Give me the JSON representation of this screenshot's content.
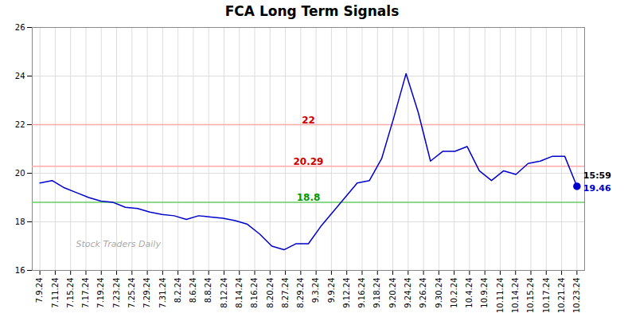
{
  "chart_data": {
    "type": "line",
    "title": "FCA Long Term Signals",
    "x": [
      0,
      0.7955,
      1.5909,
      2.3864,
      3.1818,
      3.9773,
      4.7727,
      5.5682,
      6.3636,
      7.1591,
      7.9545,
      8.75,
      9.5455,
      10.3409,
      11.1364,
      11.9318,
      12.7273,
      13.5227,
      14.3182,
      15.1136,
      15.9091,
      16.7045,
      17.5,
      18.2955,
      19.0909,
      19.8864,
      20.6818,
      21.4773,
      22.2727,
      23.0682,
      23.8636,
      24.6591,
      25.4545,
      26.25,
      27.0455,
      27.8409,
      28.6364,
      29.4318,
      30.2273,
      31.0227,
      31.8182,
      32.6136,
      33.4091,
      34.2045,
      35
    ],
    "values": [
      19.6,
      19.7,
      19.4,
      19.2,
      19.0,
      18.85,
      18.8,
      18.6,
      18.55,
      18.4,
      18.3,
      18.25,
      18.1,
      18.25,
      18.2,
      18.15,
      18.05,
      17.9,
      17.5,
      17.0,
      16.85,
      17.1,
      17.1,
      17.8,
      18.4,
      19.0,
      19.6,
      19.7,
      20.6,
      22.3,
      24.1,
      22.5,
      20.5,
      20.9,
      20.9,
      21.1,
      20.1,
      19.7,
      20.1,
      19.95,
      20.4,
      20.5,
      20.7,
      20.7,
      19.46
    ],
    "color": "#0000cc",
    "xlim": [
      -0.5,
      35.5
    ],
    "xticks": [
      {
        "value": 0,
        "label": "7.9.24"
      },
      {
        "value": 1,
        "label": "7.11.24"
      },
      {
        "value": 2,
        "label": "7.15.24"
      },
      {
        "value": 3,
        "label": "7.17.24"
      },
      {
        "value": 4,
        "label": "7.19.24"
      },
      {
        "value": 5,
        "label": "7.23.24"
      },
      {
        "value": 6,
        "label": "7.25.24"
      },
      {
        "value": 7,
        "label": "7.29.24"
      },
      {
        "value": 8,
        "label": "7.31.24"
      },
      {
        "value": 9,
        "label": "8.2.24"
      },
      {
        "value": 10,
        "label": "8.6.24"
      },
      {
        "value": 11,
        "label": "8.8.24"
      },
      {
        "value": 12,
        "label": "8.12.24"
      },
      {
        "value": 13,
        "label": "8.14.24"
      },
      {
        "value": 14,
        "label": "8.16.24"
      },
      {
        "value": 15,
        "label": "8.20.24"
      },
      {
        "value": 16,
        "label": "8.27.24"
      },
      {
        "value": 17,
        "label": "8.29.24"
      },
      {
        "value": 18,
        "label": "9.3.24"
      },
      {
        "value": 19,
        "label": "9.9.24"
      },
      {
        "value": 20,
        "label": "9.12.24"
      },
      {
        "value": 21,
        "label": "9.16.24"
      },
      {
        "value": 22,
        "label": "9.18.24"
      },
      {
        "value": 23,
        "label": "9.20.24"
      },
      {
        "value": 24,
        "label": "9.24.24"
      },
      {
        "value": 25,
        "label": "9.26.24"
      },
      {
        "value": 26,
        "label": "9.30.24"
      },
      {
        "value": 27,
        "label": "10.2.24"
      },
      {
        "value": 28,
        "label": "10.4.24"
      },
      {
        "value": 29,
        "label": "10.9.24"
      },
      {
        "value": 30,
        "label": "10.11.24"
      },
      {
        "value": 31,
        "label": "10.14.24"
      },
      {
        "value": 32,
        "label": "10.15.24"
      },
      {
        "value": 33,
        "label": "10.17.24"
      },
      {
        "value": 34,
        "label": "10.21.24"
      },
      {
        "value": 35,
        "label": "10.23.24"
      }
    ],
    "ylim": [
      16,
      26
    ],
    "yticks": [
      16,
      18,
      20,
      22,
      24,
      26
    ],
    "grid": true,
    "hlines": [
      {
        "value": 22.0,
        "label": "22",
        "color": "#ffaaaa",
        "label_color": "#cc0000"
      },
      {
        "value": 20.29,
        "label": "20.29",
        "color": "#ffaaaa",
        "label_color": "#cc0000"
      },
      {
        "value": 18.8,
        "label": "18.8",
        "color": "#66cc66",
        "label_color": "#009900"
      }
    ],
    "last_point": {
      "x": 35,
      "y": 19.46,
      "label": "15:59",
      "value_label": "19.46",
      "color": "#0000cc"
    },
    "watermark": "Stock Traders Daily"
  }
}
